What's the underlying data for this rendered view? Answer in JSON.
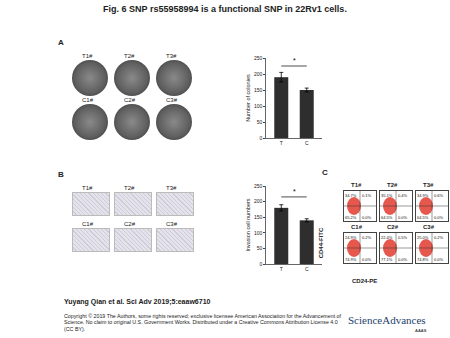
{
  "title": "Fig. 6 SNP rs55958994 is a functional SNP in 22Rv1 cells.",
  "panels": {
    "A": {
      "label": "A",
      "images": [
        "T1#",
        "T2#",
        "T3#",
        "C1#",
        "C2#",
        "C3#"
      ]
    },
    "B": {
      "label": "B",
      "images": [
        "T1#",
        "T2#",
        "T3#",
        "C1#",
        "C2#",
        "C3#"
      ]
    },
    "C": {
      "label": "C",
      "y_label": "CD44-FITC",
      "x_label": "CD24-PE",
      "plots": [
        {
          "name": "T1#",
          "quadrants": {
            "upper_left": "34.7%",
            "upper_right": "0.1%",
            "lower_left": "65.2%",
            "lower_right": "0.0%"
          }
        },
        {
          "name": "T2#",
          "quadrants": {
            "upper_left": "35.1%",
            "upper_right": "0.4%",
            "lower_left": "64.5%",
            "lower_right": "0.0%"
          }
        },
        {
          "name": "T3#",
          "quadrants": {
            "upper_left": "34.9%",
            "upper_right": "0.6%",
            "lower_left": "64.5%",
            "lower_right": "0.0%"
          }
        },
        {
          "name": "C1#",
          "quadrants": {
            "upper_left": "24.9%",
            "upper_right": "0.2%",
            "lower_left": "74.9%",
            "lower_right": "0.0%"
          }
        },
        {
          "name": "C2#",
          "quadrants": {
            "upper_left": "22.4%",
            "upper_right": "0.5%",
            "lower_left": "77.1%",
            "lower_right": "0.0%"
          }
        },
        {
          "name": "C3#",
          "quadrants": {
            "upper_left": "25.0%",
            "upper_right": "0.2%",
            "lower_left": "74.8%",
            "lower_right": "0.0%"
          }
        }
      ]
    }
  },
  "chart_data": [
    {
      "type": "bar",
      "y_label": "Number of colonies",
      "categories": [
        "T",
        "C"
      ],
      "values": [
        190,
        150
      ],
      "errors": [
        15,
        6
      ],
      "colors": [
        "#2e2e2e",
        "#2e2e2e"
      ],
      "ylim": [
        0,
        250
      ],
      "yticks": [
        0,
        50,
        100,
        150,
        200,
        250
      ],
      "annotations": [
        {
          "text": "*",
          "x_from": "T",
          "x_to": "C",
          "y": 225
        }
      ]
    },
    {
      "type": "bar",
      "y_label": "Invasion cell numbers",
      "categories": [
        "T",
        "C"
      ],
      "values": [
        180,
        140
      ],
      "errors": [
        10,
        5
      ],
      "colors": [
        "#2e2e2e",
        "#2e2e2e"
      ],
      "ylim": [
        0,
        250
      ],
      "yticks": [
        0,
        50,
        100,
        150,
        200,
        250
      ],
      "annotations": [
        {
          "text": "*",
          "x_from": "T",
          "x_to": "C",
          "y": 215
        }
      ]
    }
  ],
  "footer": {
    "citation": "Yuyang Qian et al. Sci Adv 2019;5:eaaw6710",
    "copyright": "Copyright © 2019 The Authors, some rights reserved; exclusive licensee American Association for the Advancement of Science. No claim to original U.S. Government Works. Distributed under a Creative Commons Attribution License 4.0 (CC BY).",
    "logo": "ScienceAdvances",
    "logo_sub": "AAAS"
  }
}
